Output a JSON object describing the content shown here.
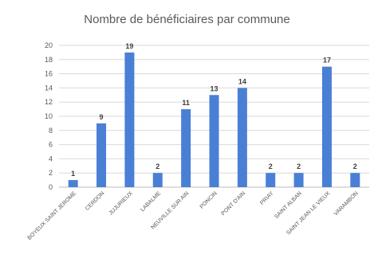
{
  "chart_data": {
    "type": "bar",
    "title": "Nombre de bénéficiaires par commune",
    "xlabel": "",
    "ylabel": "",
    "categories": [
      "BOYEUX SAINT JEROME",
      "CERDON",
      "JUJURIEUX",
      "LABALME",
      "NEUVILLE SUR AIN",
      "PONCIN",
      "PONT D'AIN",
      "PRIAY",
      "SAINT ALBAN",
      "SAINT JEAN LE VIEUX",
      "VARAMBON"
    ],
    "values": [
      1,
      9,
      19,
      2,
      11,
      13,
      14,
      2,
      2,
      17,
      2
    ],
    "ylim": [
      0,
      20
    ],
    "yticks": [
      0,
      2,
      4,
      6,
      8,
      10,
      12,
      14,
      16,
      18,
      20
    ],
    "grid": true,
    "legend": "none",
    "bar_color": "#4a7fd6",
    "grid_color": "#d9d9d9"
  }
}
